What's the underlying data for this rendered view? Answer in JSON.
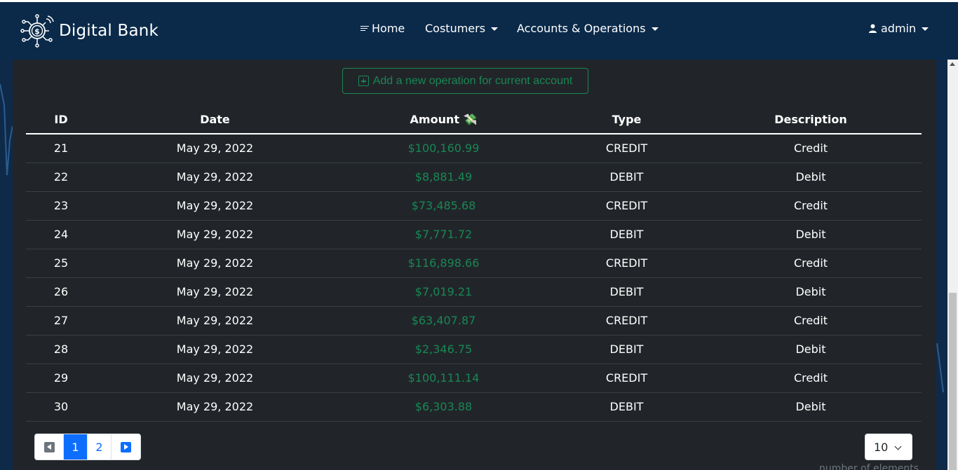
{
  "brand": {
    "name": "Digital Bank",
    "logo_icon": "dollar-circuit-icon"
  },
  "nav": {
    "home": "Home",
    "costumers": "Costumers",
    "accounts": "Accounts & Operations",
    "user": "admin"
  },
  "actions": {
    "add_operation": "Add a new operation for current account"
  },
  "table": {
    "headers": {
      "id": "ID",
      "date": "Date",
      "amount": "Amount 💸",
      "type": "Type",
      "description": "Description"
    },
    "rows": [
      {
        "id": "21",
        "date": "May 29, 2022",
        "amount": "$100,160.99",
        "type": "CREDIT",
        "description": "Credit"
      },
      {
        "id": "22",
        "date": "May 29, 2022",
        "amount": "$8,881.49",
        "type": "DEBIT",
        "description": "Debit"
      },
      {
        "id": "23",
        "date": "May 29, 2022",
        "amount": "$73,485.68",
        "type": "CREDIT",
        "description": "Credit"
      },
      {
        "id": "24",
        "date": "May 29, 2022",
        "amount": "$7,771.72",
        "type": "DEBIT",
        "description": "Debit"
      },
      {
        "id": "25",
        "date": "May 29, 2022",
        "amount": "$116,898.66",
        "type": "CREDIT",
        "description": "Credit"
      },
      {
        "id": "26",
        "date": "May 29, 2022",
        "amount": "$7,019.21",
        "type": "DEBIT",
        "description": "Debit"
      },
      {
        "id": "27",
        "date": "May 29, 2022",
        "amount": "$63,407.87",
        "type": "CREDIT",
        "description": "Credit"
      },
      {
        "id": "28",
        "date": "May 29, 2022",
        "amount": "$2,346.75",
        "type": "DEBIT",
        "description": "Debit"
      },
      {
        "id": "29",
        "date": "May 29, 2022",
        "amount": "$100,111.14",
        "type": "CREDIT",
        "description": "Credit"
      },
      {
        "id": "30",
        "date": "May 29, 2022",
        "amount": "$6,303.88",
        "type": "DEBIT",
        "description": "Debit"
      }
    ]
  },
  "pagination": {
    "pages": [
      "1",
      "2"
    ],
    "current": "1"
  },
  "page_size": {
    "value": "10",
    "caption": "number of elements"
  },
  "colors": {
    "navbar": "#0b2a4a",
    "panel": "#212529",
    "amount": "#198754",
    "primary": "#0d6efd"
  }
}
